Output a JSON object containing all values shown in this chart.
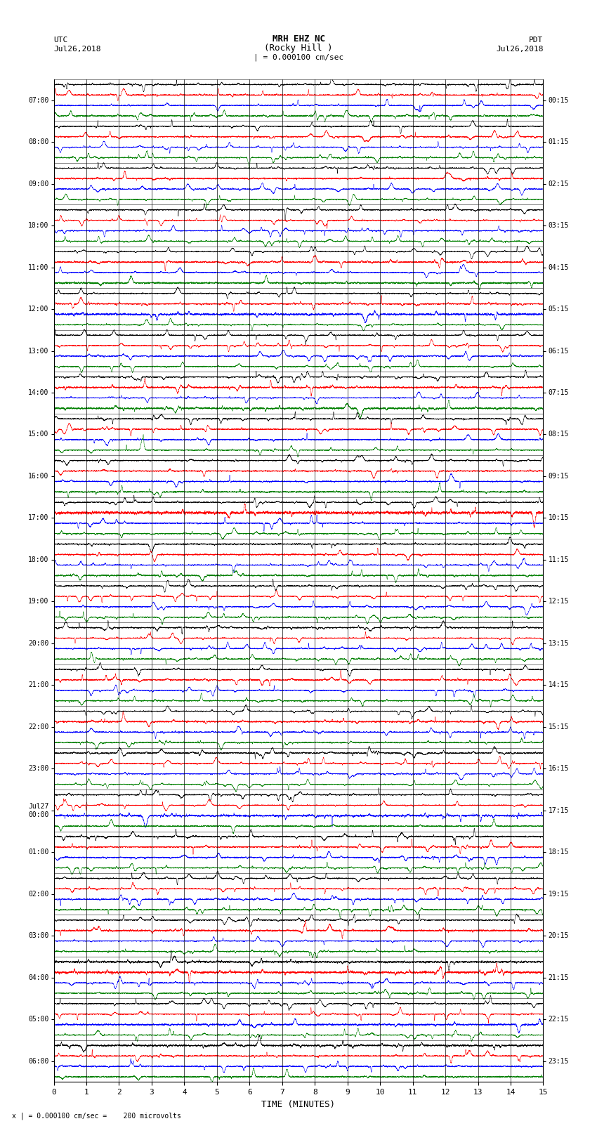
{
  "title_line1": "MRH EHZ NC",
  "title_line2": "(Rocky Hill )",
  "title_line3": "| = 0.000100 cm/sec",
  "left_label_top": "UTC",
  "left_label_date": "Jul26,2018",
  "right_label_top": "PDT",
  "right_label_date": "Jul26,2018",
  "xlabel": "TIME (MINUTES)",
  "footer": "x | = 0.000100 cm/sec =    200 microvolts",
  "utc_times": [
    "07:00",
    "08:00",
    "09:00",
    "10:00",
    "11:00",
    "12:00",
    "13:00",
    "14:00",
    "15:00",
    "16:00",
    "17:00",
    "18:00",
    "19:00",
    "20:00",
    "21:00",
    "22:00",
    "23:00",
    "Jul27\n00:00",
    "01:00",
    "02:00",
    "03:00",
    "04:00",
    "05:00",
    "06:00"
  ],
  "pdt_times": [
    "00:15",
    "01:15",
    "02:15",
    "03:15",
    "04:15",
    "05:15",
    "06:15",
    "07:15",
    "08:15",
    "09:15",
    "10:15",
    "11:15",
    "12:15",
    "13:15",
    "14:15",
    "15:15",
    "16:15",
    "17:15",
    "18:15",
    "19:15",
    "20:15",
    "21:15",
    "22:15",
    "23:15"
  ],
  "n_rows": 24,
  "n_points": 9000,
  "colors": [
    "black",
    "red",
    "blue",
    "green"
  ],
  "background_color": "white",
  "x_ticks": [
    0,
    1,
    2,
    3,
    4,
    5,
    6,
    7,
    8,
    9,
    10,
    11,
    12,
    13,
    14,
    15
  ],
  "figsize": [
    8.5,
    16.13
  ],
  "dpi": 100
}
